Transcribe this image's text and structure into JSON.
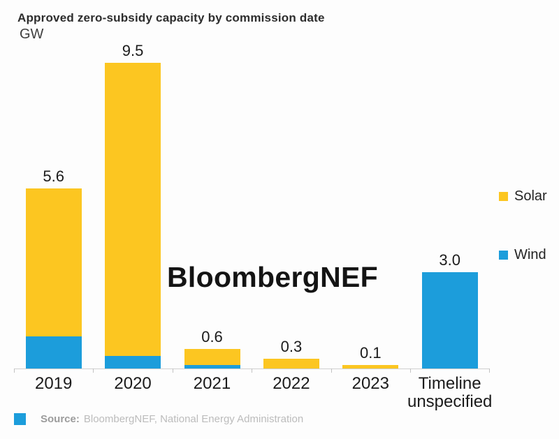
{
  "header": {
    "title": "Approved zero-subsidy capacity by commission date",
    "unit": "GW"
  },
  "watermark": "BloombergNEF",
  "legend": [
    {
      "label": "Solar",
      "color": "#FCC621",
      "icon": "solar-swatch-icon"
    },
    {
      "label": "Wind",
      "color": "#1C9DDB",
      "icon": "wind-swatch-icon"
    }
  ],
  "source": {
    "prefix": "Source:",
    "text": "BloombergNEF, National Energy Administration",
    "logo_color": "#1C9DDB"
  },
  "chart_data": {
    "type": "bar",
    "stacked": true,
    "title": "Approved zero-subsidy capacity by commission date",
    "ylabel": "GW",
    "xlabel": "",
    "ylim": [
      0,
      10
    ],
    "grid": false,
    "legend_position": "right",
    "categories": [
      "2019",
      "2020",
      "2021",
      "2022",
      "2023",
      "Timeline unspecified"
    ],
    "series": [
      {
        "name": "Solar",
        "color": "#FCC621",
        "values": [
          4.6,
          9.1,
          0.5,
          0.3,
          0.1,
          0
        ]
      },
      {
        "name": "Wind",
        "color": "#1C9DDB",
        "values": [
          1.0,
          0.4,
          0.1,
          0,
          0,
          3.0
        ]
      }
    ],
    "totals": [
      5.6,
      9.5,
      0.6,
      0.3,
      0.1,
      3.0
    ],
    "total_labels": [
      "5.6",
      "9.5",
      "0.6",
      "0.3",
      "0.1",
      "3.0"
    ]
  }
}
